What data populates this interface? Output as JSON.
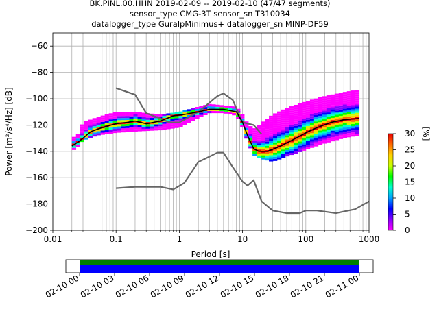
{
  "title_lines": [
    "BK.PINL.00.HHN   2019-02-09 -- 2019-02-10  (47/47 segments)",
    "sensor_type CMG-3T sensor_sn T310034",
    "datalogger_type GuralpMinimus+ datalogger_sn MINP-DF59"
  ],
  "colors": {
    "mean_line": "#000000",
    "model_lines": "#666666",
    "coverage_green": "#008000",
    "coverage_blue": "#0000ff",
    "colormap": [
      "#ff00ff",
      "#8800ff",
      "#0000ff",
      "#00a0ff",
      "#00ffcc",
      "#00ff00",
      "#c8ff00",
      "#ffd200",
      "#ff6a00",
      "#ee0000"
    ]
  },
  "chart_data": [
    {
      "type": "heatmap",
      "xlabel": "Period [s]",
      "ylabel": "Power [m²/s⁴/Hz] [dB]",
      "xscale": "log",
      "xlim": [
        0.01,
        1000
      ],
      "ylim": [
        -200,
        -50
      ],
      "xticks": [
        0.01,
        0.1,
        1,
        10,
        100,
        1000
      ],
      "xtick_labels": [
        "0.01",
        "0.1",
        "1",
        "10",
        "100",
        "1000"
      ],
      "yticks": [
        -60,
        -80,
        -100,
        -120,
        -140,
        -160,
        -180,
        -200
      ],
      "ytick_labels": [
        "−60",
        "−80",
        "−100",
        "−120",
        "−140",
        "−160",
        "−180",
        "−200"
      ],
      "grid": true,
      "mean_psd": {
        "x": [
          0.02,
          0.025,
          0.03,
          0.04,
          0.06,
          0.1,
          0.15,
          0.2,
          0.3,
          0.5,
          0.8,
          1.2,
          2,
          3,
          5,
          8,
          10,
          12,
          15,
          18,
          25,
          40,
          70,
          100,
          150,
          250,
          400,
          700
        ],
        "y": [
          -136,
          -133,
          -130,
          -125,
          -122,
          -119,
          -118,
          -117,
          -119,
          -117,
          -113,
          -112,
          -110,
          -108,
          -108,
          -110,
          -118,
          -128,
          -138,
          -140,
          -140,
          -136,
          -130,
          -126,
          -122,
          -118,
          -116,
          -115
        ]
      },
      "noise_models": [
        {
          "x": [
            0.1,
            0.2,
            0.3,
            0.5,
            0.7,
            1,
            2,
            3,
            4,
            5,
            7,
            10,
            15,
            20
          ],
          "y": [
            -92,
            -97,
            -111,
            -115,
            -118,
            -118,
            -110,
            -103,
            -98,
            -96,
            -101,
            -118,
            -120,
            -127
          ]
        },
        {
          "x": [
            0.1,
            0.2,
            0.3,
            0.5,
            0.8,
            1.2,
            2,
            3,
            4,
            5,
            7,
            10,
            12,
            15,
            20,
            30,
            50,
            80,
            100,
            150,
            300,
            600,
            1000
          ],
          "y": [
            -168,
            -167,
            -167,
            -167,
            -169,
            -164,
            -148,
            -144,
            -141,
            -141,
            -152,
            -163,
            -166,
            -162,
            -178,
            -185,
            -187,
            -187,
            -185,
            -185,
            -187,
            -184,
            -178
          ]
        }
      ],
      "psd_bands": {
        "x": [
          0.02,
          0.025,
          0.03,
          0.05,
          0.1,
          0.2,
          0.5,
          1,
          2,
          3,
          5,
          8,
          10,
          12,
          15,
          20,
          30,
          50,
          100,
          200,
          400,
          700
        ],
        "low": [
          -140,
          -137,
          -132,
          -128,
          -126,
          -125,
          -124,
          -122,
          -115,
          -111,
          -111,
          -113,
          -122,
          -133,
          -143,
          -146,
          -148,
          -144,
          -139,
          -134,
          -130,
          -128
        ],
        "high": [
          -130,
          -127,
          -118,
          -114,
          -110,
          -110,
          -112,
          -110,
          -106,
          -104,
          -105,
          -106,
          -112,
          -119,
          -123,
          -118,
          -112,
          -107,
          -102,
          -98,
          -95,
          -93
        ]
      },
      "colorbar": {
        "label": "[%]",
        "range": [
          0,
          30
        ],
        "ticks": [
          0,
          5,
          10,
          15,
          20,
          25,
          30
        ]
      }
    },
    {
      "type": "bar",
      "x_tick_labels": [
        "02-10 00",
        "02-10 03",
        "02-10 06",
        "02-10 09",
        "02-10 12",
        "02-10 15",
        "02-10 18",
        "02-10 21",
        "02-11 00"
      ],
      "coverage": {
        "start_fraction": 0.0,
        "end_fraction": 1.0
      }
    }
  ]
}
